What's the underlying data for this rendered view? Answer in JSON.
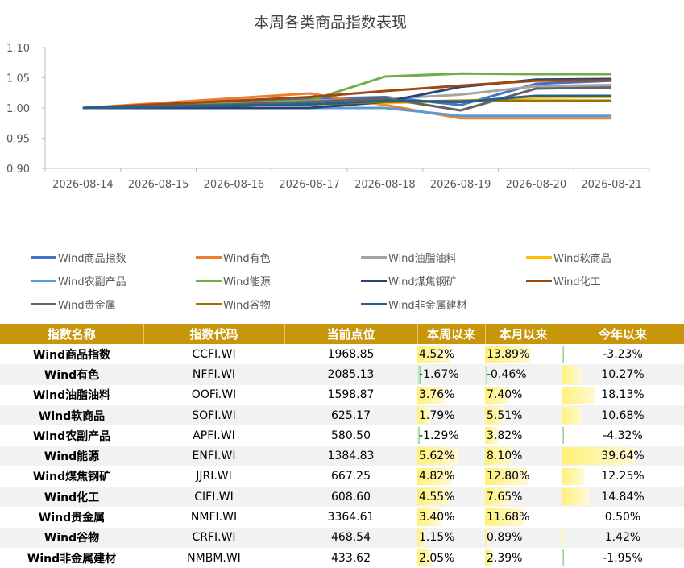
{
  "chart_data": {
    "type": "line",
    "title": "本周各类商品指数表现",
    "xlabel": "",
    "ylabel": "",
    "x": [
      "2026-08-14",
      "2026-08-15",
      "2026-08-16",
      "2026-08-17",
      "2026-08-18",
      "2026-08-19",
      "2026-08-20",
      "2026-08-21"
    ],
    "ylim": [
      0.9,
      1.1
    ],
    "yticks": [
      "0.90",
      "0.95",
      "1.00",
      "1.05",
      "1.10"
    ],
    "grid": false,
    "legend_position": "bottom",
    "series": [
      {
        "name": "Wind商品指数",
        "color": "#4472c4",
        "values": [
          1.0,
          1.005,
          1.01,
          1.015,
          1.018,
          1.005,
          1.04,
          1.045
        ]
      },
      {
        "name": "Wind有色",
        "color": "#ed7d31",
        "values": [
          1.0,
          1.008,
          1.016,
          1.024,
          1.005,
          0.983,
          0.983,
          0.983
        ]
      },
      {
        "name": "Wind油脂油料",
        "color": "#a5a5a5",
        "values": [
          1.0,
          1.004,
          1.008,
          1.012,
          1.015,
          1.022,
          1.036,
          1.038
        ]
      },
      {
        "name": "Wind软商品",
        "color": "#ffc000",
        "values": [
          1.0,
          1.002,
          1.004,
          1.006,
          1.008,
          1.012,
          1.017,
          1.018
        ]
      },
      {
        "name": "Wind农副产品",
        "color": "#5b9bd5",
        "values": [
          1.0,
          1.0,
          1.0,
          1.0,
          1.0,
          0.987,
          0.987,
          0.987
        ]
      },
      {
        "name": "Wind能源",
        "color": "#70ad47",
        "values": [
          1.0,
          1.004,
          1.008,
          1.012,
          1.052,
          1.057,
          1.056,
          1.056
        ]
      },
      {
        "name": "Wind煤焦钢矿",
        "color": "#264478",
        "values": [
          1.0,
          1.0,
          1.0,
          1.0,
          1.01,
          1.035,
          1.047,
          1.048
        ]
      },
      {
        "name": "Wind化工",
        "color": "#9e480e",
        "values": [
          1.0,
          1.006,
          1.012,
          1.018,
          1.028,
          1.037,
          1.045,
          1.046
        ]
      },
      {
        "name": "Wind贵金属",
        "color": "#636363",
        "values": [
          1.0,
          1.003,
          1.006,
          1.01,
          1.016,
          0.996,
          1.032,
          1.034
        ]
      },
      {
        "name": "Wind谷物",
        "color": "#997300",
        "values": [
          1.0,
          1.002,
          1.004,
          1.006,
          1.01,
          1.012,
          1.012,
          1.012
        ]
      },
      {
        "name": "Wind非金属建材",
        "color": "#255e91",
        "values": [
          1.0,
          1.002,
          1.004,
          1.006,
          1.012,
          1.01,
          1.02,
          1.02
        ]
      }
    ]
  },
  "table": {
    "headers": [
      "指数名称",
      "指数代码",
      "当前点位",
      "本周以来",
      "本月以来",
      "今年以来"
    ],
    "rows": [
      {
        "name": "Wind商品指数",
        "code": "CCFI.WI",
        "point": "1968.85",
        "week": "4.52%",
        "month": "13.89%",
        "year": "-3.23%",
        "week_v": 4.52,
        "month_v": 13.89,
        "year_v": -3.23
      },
      {
        "name": "Wind有色",
        "code": "NFFI.WI",
        "point": "2085.13",
        "week": "-1.67%",
        "month": "-0.46%",
        "year": "10.27%",
        "week_v": -1.67,
        "month_v": -0.46,
        "year_v": 10.27
      },
      {
        "name": "Wind油脂油料",
        "code": "OOFi.WI",
        "point": "1598.87",
        "week": "3.76%",
        "month": "7.40%",
        "year": "18.13%",
        "week_v": 3.76,
        "month_v": 7.4,
        "year_v": 18.13
      },
      {
        "name": "Wind软商品",
        "code": "SOFI.WI",
        "point": "625.17",
        "week": "1.79%",
        "month": "5.51%",
        "year": "10.68%",
        "week_v": 1.79,
        "month_v": 5.51,
        "year_v": 10.68
      },
      {
        "name": "Wind农副产品",
        "code": "APFI.WI",
        "point": "580.50",
        "week": "-1.29%",
        "month": "3.82%",
        "year": "-4.32%",
        "week_v": -1.29,
        "month_v": 3.82,
        "year_v": -4.32
      },
      {
        "name": "Wind能源",
        "code": "ENFI.WI",
        "point": "1384.83",
        "week": "5.62%",
        "month": "8.10%",
        "year": "39.64%",
        "week_v": 5.62,
        "month_v": 8.1,
        "year_v": 39.64
      },
      {
        "name": "Wind煤焦钢矿",
        "code": "JJRI.WI",
        "point": "667.25",
        "week": "4.82%",
        "month": "12.80%",
        "year": "12.25%",
        "week_v": 4.82,
        "month_v": 12.8,
        "year_v": 12.25
      },
      {
        "name": "Wind化工",
        "code": "CIFI.WI",
        "point": "608.60",
        "week": "4.55%",
        "month": "7.65%",
        "year": "14.84%",
        "week_v": 4.55,
        "month_v": 7.65,
        "year_v": 14.84
      },
      {
        "name": "Wind贵金属",
        "code": "NMFI.WI",
        "point": "3364.61",
        "week": "3.40%",
        "month": "11.68%",
        "year": "0.50%",
        "week_v": 3.4,
        "month_v": 11.68,
        "year_v": 0.5
      },
      {
        "name": "Wind谷物",
        "code": "CRFI.WI",
        "point": "468.54",
        "week": "1.15%",
        "month": "0.89%",
        "year": "1.42%",
        "week_v": 1.15,
        "month_v": 0.89,
        "year_v": 1.42
      },
      {
        "name": "Wind非金属建材",
        "code": "NMBM.WI",
        "point": "433.62",
        "week": "2.05%",
        "month": "2.39%",
        "year": "-1.95%",
        "week_v": 2.05,
        "month_v": 2.39,
        "year_v": -1.95
      }
    ]
  },
  "colors": {
    "header_bg": "#c8960b",
    "bar_positive": "#fff176",
    "bar_negative": "#8fd18f"
  }
}
